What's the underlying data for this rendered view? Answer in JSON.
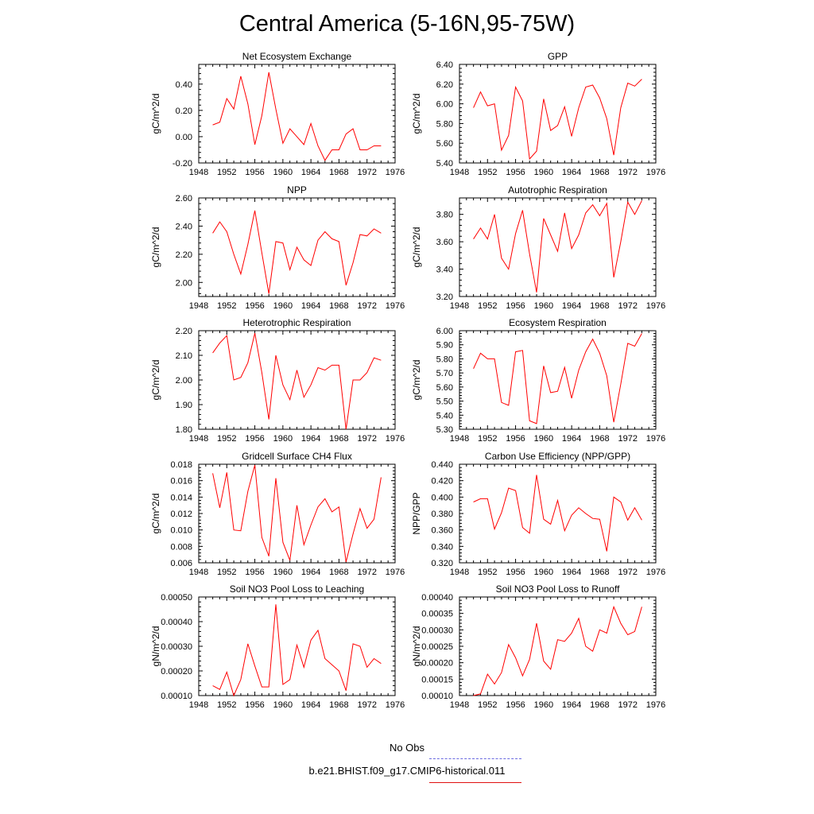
{
  "page": {
    "title": "Central America (5-16N,95-75W)"
  },
  "legend": [
    {
      "label": "No Obs",
      "color": "#6a6ae0",
      "style": "dashed"
    },
    {
      "label": "b.e21.BHIST.f09_g17.CMIP6-historical.011",
      "color": "#e01010",
      "style": "solid"
    }
  ],
  "chart_data": [
    {
      "type": "line",
      "title": "Net Ecosystem Exchange",
      "xlabel": "",
      "ylabel": "gC/m^2/d",
      "xlim": [
        1948,
        1976
      ],
      "ylim": [
        -0.2,
        0.55
      ],
      "xticks": [
        "1948",
        "1952",
        "1956",
        "1960",
        "1964",
        "1968",
        "1972",
        "1976"
      ],
      "yticks": [
        "-0.20",
        "0.00",
        "0.20",
        "0.40"
      ],
      "series": [
        {
          "color": "#ff0000",
          "x": [
            1950,
            1951,
            1952,
            1953,
            1954,
            1955,
            1956,
            1957,
            1958,
            1959,
            1960,
            1961,
            1962,
            1963,
            1964,
            1965,
            1966,
            1967,
            1968,
            1969,
            1970,
            1971,
            1972,
            1973,
            1974
          ],
          "values": [
            0.09,
            0.11,
            0.29,
            0.21,
            0.46,
            0.25,
            -0.06,
            0.16,
            0.49,
            0.21,
            -0.05,
            0.06,
            0.0,
            -0.06,
            0.1,
            -0.07,
            -0.18,
            -0.1,
            -0.1,
            0.02,
            0.06,
            -0.1,
            -0.1,
            -0.07,
            -0.07
          ]
        }
      ]
    },
    {
      "type": "line",
      "title": "GPP",
      "xlabel": "",
      "ylabel": "gC/m^2/d",
      "xlim": [
        1948,
        1976
      ],
      "ylim": [
        5.4,
        6.4
      ],
      "xticks": [
        "1948",
        "1952",
        "1956",
        "1960",
        "1964",
        "1968",
        "1972",
        "1976"
      ],
      "yticks": [
        "5.40",
        "5.60",
        "5.80",
        "6.00",
        "6.20",
        "6.40"
      ],
      "series": [
        {
          "color": "#ff0000",
          "x": [
            1950,
            1951,
            1952,
            1953,
            1954,
            1955,
            1956,
            1957,
            1958,
            1959,
            1960,
            1961,
            1962,
            1963,
            1964,
            1965,
            1966,
            1967,
            1968,
            1969,
            1970,
            1971,
            1972,
            1973,
            1974
          ],
          "values": [
            5.96,
            6.12,
            5.98,
            6.0,
            5.53,
            5.68,
            6.17,
            6.03,
            5.44,
            5.52,
            6.05,
            5.73,
            5.78,
            5.97,
            5.67,
            5.96,
            6.17,
            6.19,
            6.06,
            5.85,
            5.48,
            5.96,
            6.21,
            6.18,
            6.25
          ]
        }
      ]
    },
    {
      "type": "line",
      "title": "NPP",
      "xlabel": "",
      "ylabel": "gC/m^2/d",
      "xlim": [
        1948,
        1976
      ],
      "ylim": [
        1.9,
        2.6
      ],
      "xticks": [
        "1948",
        "1952",
        "1956",
        "1960",
        "1964",
        "1968",
        "1972",
        "1976"
      ],
      "yticks": [
        "2.00",
        "2.20",
        "2.40",
        "2.60"
      ],
      "series": [
        {
          "color": "#ff0000",
          "x": [
            1950,
            1951,
            1952,
            1953,
            1954,
            1955,
            1956,
            1957,
            1958,
            1959,
            1960,
            1961,
            1962,
            1963,
            1964,
            1965,
            1966,
            1967,
            1968,
            1969,
            1970,
            1971,
            1972,
            1973,
            1974
          ],
          "values": [
            2.35,
            2.43,
            2.36,
            2.2,
            2.06,
            2.27,
            2.51,
            2.21,
            1.92,
            2.29,
            2.28,
            2.09,
            2.25,
            2.16,
            2.12,
            2.3,
            2.36,
            2.31,
            2.29,
            1.98,
            2.14,
            2.34,
            2.33,
            2.38,
            2.35
          ]
        }
      ]
    },
    {
      "type": "line",
      "title": "Autotrophic Respiration",
      "xlabel": "",
      "ylabel": "gC/m^2/d",
      "xlim": [
        1948,
        1976
      ],
      "ylim": [
        3.2,
        3.92
      ],
      "xticks": [
        "1948",
        "1952",
        "1956",
        "1960",
        "1964",
        "1968",
        "1972",
        "1976"
      ],
      "yticks": [
        "3.20",
        "3.40",
        "3.60",
        "3.80"
      ],
      "series": [
        {
          "color": "#ff0000",
          "x": [
            1950,
            1951,
            1952,
            1953,
            1954,
            1955,
            1956,
            1957,
            1958,
            1959,
            1960,
            1961,
            1962,
            1963,
            1964,
            1965,
            1966,
            1967,
            1968,
            1969,
            1970,
            1971,
            1972,
            1973,
            1974
          ],
          "values": [
            3.62,
            3.7,
            3.62,
            3.8,
            3.48,
            3.4,
            3.66,
            3.83,
            3.51,
            3.23,
            3.77,
            3.65,
            3.53,
            3.81,
            3.55,
            3.65,
            3.81,
            3.87,
            3.79,
            3.88,
            3.34,
            3.6,
            3.89,
            3.8,
            3.9
          ]
        }
      ]
    },
    {
      "type": "line",
      "title": "Heterotrophic Respiration",
      "xlabel": "",
      "ylabel": "gC/m^2/d",
      "xlim": [
        1948,
        1976
      ],
      "ylim": [
        1.8,
        2.2
      ],
      "xticks": [
        "1948",
        "1952",
        "1956",
        "1960",
        "1964",
        "1968",
        "1972",
        "1976"
      ],
      "yticks": [
        "1.80",
        "1.90",
        "2.00",
        "2.10",
        "2.20"
      ],
      "series": [
        {
          "color": "#ff0000",
          "x": [
            1950,
            1951,
            1952,
            1953,
            1954,
            1955,
            1956,
            1957,
            1958,
            1959,
            1960,
            1961,
            1962,
            1963,
            1964,
            1965,
            1966,
            1967,
            1968,
            1969,
            1970,
            1971,
            1972,
            1973,
            1974
          ],
          "values": [
            2.11,
            2.15,
            2.18,
            2.0,
            2.01,
            2.07,
            2.19,
            2.03,
            1.84,
            2.1,
            1.98,
            1.92,
            2.04,
            1.93,
            1.98,
            2.05,
            2.04,
            2.06,
            2.06,
            1.8,
            2.0,
            2.0,
            2.03,
            2.09,
            2.08
          ]
        }
      ]
    },
    {
      "type": "line",
      "title": "Ecosystem Respiration",
      "xlabel": "",
      "ylabel": "gC/m^2/d",
      "xlim": [
        1948,
        1976
      ],
      "ylim": [
        5.3,
        6.0
      ],
      "xticks": [
        "1948",
        "1952",
        "1956",
        "1960",
        "1964",
        "1968",
        "1972",
        "1976"
      ],
      "yticks": [
        "5.30",
        "5.40",
        "5.50",
        "5.60",
        "5.70",
        "5.80",
        "5.90",
        "6.00"
      ],
      "series": [
        {
          "color": "#ff0000",
          "x": [
            1950,
            1951,
            1952,
            1953,
            1954,
            1955,
            1956,
            1957,
            1958,
            1959,
            1960,
            1961,
            1962,
            1963,
            1964,
            1965,
            1966,
            1967,
            1968,
            1969,
            1970,
            1971,
            1972,
            1973,
            1974
          ],
          "values": [
            5.73,
            5.84,
            5.8,
            5.8,
            5.49,
            5.47,
            5.85,
            5.86,
            5.36,
            5.34,
            5.75,
            5.56,
            5.57,
            5.74,
            5.52,
            5.72,
            5.85,
            5.94,
            5.84,
            5.68,
            5.35,
            5.62,
            5.91,
            5.89,
            5.98
          ]
        }
      ]
    },
    {
      "type": "line",
      "title": "Gridcell Surface CH4 Flux",
      "xlabel": "",
      "ylabel": "gC/m^2/d",
      "xlim": [
        1948,
        1976
      ],
      "ylim": [
        0.006,
        0.018
      ],
      "xticks": [
        "1948",
        "1952",
        "1956",
        "1960",
        "1964",
        "1968",
        "1972",
        "1976"
      ],
      "yticks": [
        "0.006",
        "0.008",
        "0.010",
        "0.012",
        "0.014",
        "0.016",
        "0.018"
      ],
      "series": [
        {
          "color": "#ff0000",
          "x": [
            1950,
            1951,
            1952,
            1953,
            1954,
            1955,
            1956,
            1957,
            1958,
            1959,
            1960,
            1961,
            1962,
            1963,
            1964,
            1965,
            1966,
            1967,
            1968,
            1969,
            1970,
            1971,
            1972,
            1973,
            1974
          ],
          "values": [
            0.0169,
            0.0127,
            0.017,
            0.01,
            0.0099,
            0.0147,
            0.0179,
            0.0091,
            0.0068,
            0.0163,
            0.0085,
            0.0063,
            0.013,
            0.0082,
            0.0106,
            0.0128,
            0.0138,
            0.0122,
            0.0128,
            0.0061,
            0.0095,
            0.0126,
            0.0102,
            0.0113,
            0.0164
          ]
        }
      ]
    },
    {
      "type": "line",
      "title": "Carbon Use Efficiency (NPP/GPP)",
      "xlabel": "",
      "ylabel": "NPP/GPP",
      "xlim": [
        1948,
        1976
      ],
      "ylim": [
        0.32,
        0.44
      ],
      "xticks": [
        "1948",
        "1952",
        "1956",
        "1960",
        "1964",
        "1968",
        "1972",
        "1976"
      ],
      "yticks": [
        "0.320",
        "0.340",
        "0.360",
        "0.380",
        "0.400",
        "0.420",
        "0.440"
      ],
      "series": [
        {
          "color": "#ff0000",
          "x": [
            1950,
            1951,
            1952,
            1953,
            1954,
            1955,
            1956,
            1957,
            1958,
            1959,
            1960,
            1961,
            1962,
            1963,
            1964,
            1965,
            1966,
            1967,
            1968,
            1969,
            1970,
            1971,
            1972,
            1973,
            1974
          ],
          "values": [
            0.394,
            0.398,
            0.398,
            0.361,
            0.381,
            0.411,
            0.408,
            0.363,
            0.356,
            0.427,
            0.373,
            0.367,
            0.396,
            0.359,
            0.378,
            0.387,
            0.38,
            0.374,
            0.373,
            0.334,
            0.4,
            0.394,
            0.372,
            0.387,
            0.372
          ]
        }
      ]
    },
    {
      "type": "line",
      "title": "Soil NO3 Pool Loss to Leaching",
      "xlabel": "",
      "ylabel": "gN/m^2/d",
      "xlim": [
        1948,
        1976
      ],
      "ylim": [
        0.0001,
        0.0005
      ],
      "xticks": [
        "1948",
        "1952",
        "1956",
        "1960",
        "1964",
        "1968",
        "1972",
        "1976"
      ],
      "yticks": [
        "0.00010",
        "0.00020",
        "0.00030",
        "0.00040",
        "0.00050"
      ],
      "series": [
        {
          "color": "#ff0000",
          "x": [
            1950,
            1951,
            1952,
            1953,
            1954,
            1955,
            1956,
            1957,
            1958,
            1959,
            1960,
            1961,
            1962,
            1963,
            1964,
            1965,
            1966,
            1967,
            1968,
            1969,
            1970,
            1971,
            1972,
            1973,
            1974
          ],
          "values": [
            0.00014,
            0.000125,
            0.000195,
            0.0001,
            0.000165,
            0.00031,
            0.00022,
            0.000135,
            0.000135,
            0.00047,
            0.000145,
            0.000165,
            0.000305,
            0.000215,
            0.000325,
            0.000365,
            0.00025,
            0.000225,
            0.0002,
            0.00012,
            0.00031,
            0.0003,
            0.000215,
            0.00025,
            0.00023
          ]
        }
      ]
    },
    {
      "type": "line",
      "title": "Soil NO3 Pool Loss to Runoff",
      "xlabel": "",
      "ylabel": "gN/m^2/d",
      "xlim": [
        1948,
        1976
      ],
      "ylim": [
        0.0001,
        0.0004
      ],
      "xticks": [
        "1948",
        "1952",
        "1956",
        "1960",
        "1964",
        "1968",
        "1972",
        "1976"
      ],
      "yticks": [
        "0.00010",
        "0.00015",
        "0.00020",
        "0.00025",
        "0.00030",
        "0.00035",
        "0.00040"
      ],
      "series": [
        {
          "color": "#ff0000",
          "x": [
            1950,
            1951,
            1952,
            1953,
            1954,
            1955,
            1956,
            1957,
            1958,
            1959,
            1960,
            1961,
            1962,
            1963,
            1964,
            1965,
            1966,
            1967,
            1968,
            1969,
            1970,
            1971,
            1972,
            1973,
            1974
          ],
          "values": [
            0.0001,
            0.000105,
            0.000165,
            0.000135,
            0.00017,
            0.000255,
            0.000215,
            0.00016,
            0.00021,
            0.00032,
            0.000205,
            0.00018,
            0.00027,
            0.000265,
            0.00029,
            0.000335,
            0.00025,
            0.000235,
            0.0003,
            0.00029,
            0.00037,
            0.00032,
            0.000285,
            0.000295,
            0.00037
          ]
        }
      ]
    }
  ]
}
